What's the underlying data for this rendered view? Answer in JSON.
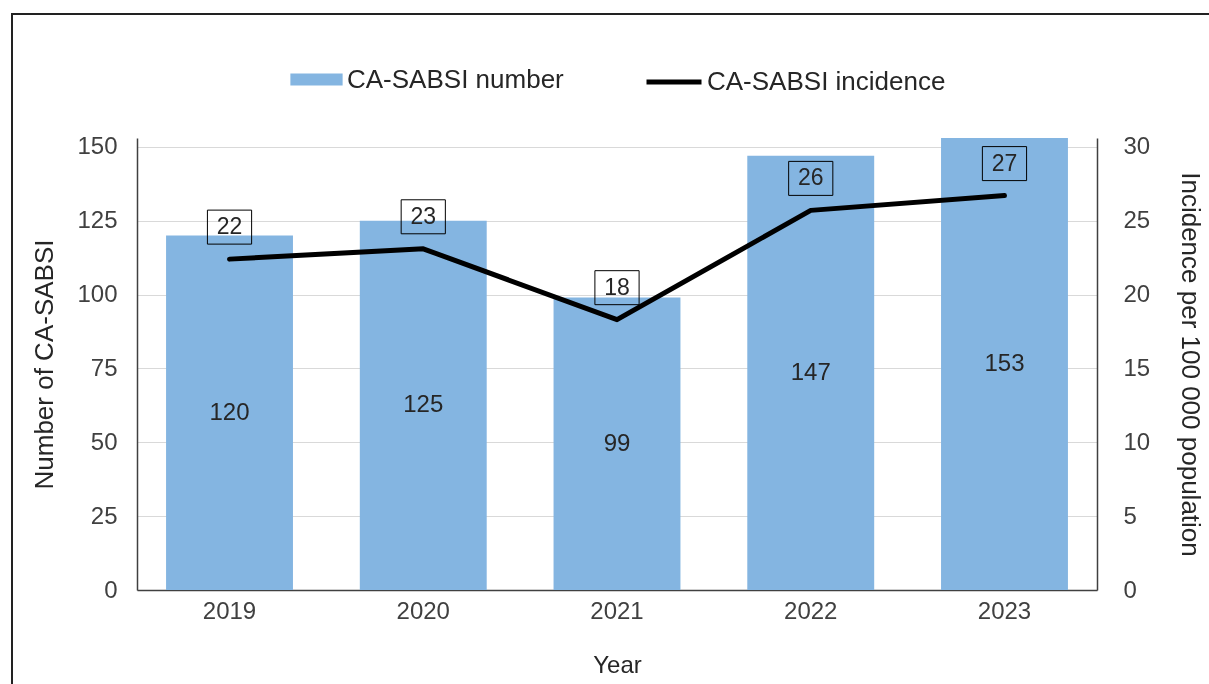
{
  "chart_data": {
    "type": "bar",
    "categories": [
      "2019",
      "2020",
      "2021",
      "2022",
      "2023"
    ],
    "series": [
      {
        "name": "CA-SABSI number",
        "color": "#84b5e1",
        "values": [
          120,
          125,
          99,
          147,
          153
        ],
        "value_labels": [
          "120",
          "125",
          "99",
          "147",
          "153"
        ]
      },
      {
        "name": "CA-SABSI incidence",
        "type": "line",
        "axis": "y2",
        "color": "#000000",
        "values": [
          22.4,
          23.1,
          18.3,
          25.7,
          26.7
        ],
        "value_labels": [
          "22",
          "23",
          "18",
          "26",
          "27"
        ]
      }
    ],
    "xlabel": "Year",
    "ylabel": "Number of CA-SABSI",
    "y2label": "Incidence per 100 000 population",
    "ylim": [
      0,
      153
    ],
    "yticks": [
      0,
      25,
      50,
      75,
      100,
      125,
      150
    ],
    "y2lim": [
      0,
      30.6
    ],
    "y2ticks": [
      0,
      5,
      10,
      15,
      20,
      25,
      30
    ],
    "grid": "y",
    "legend": "top"
  }
}
